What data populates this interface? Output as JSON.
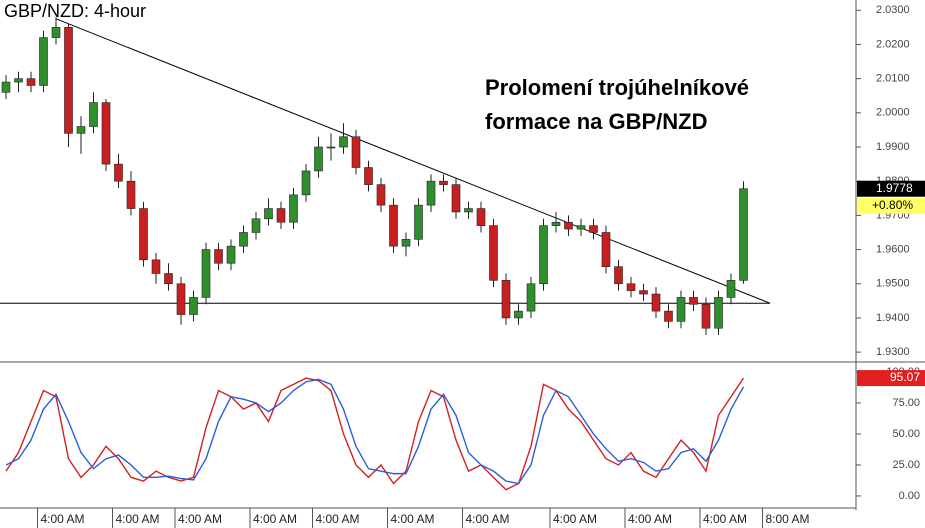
{
  "chart_data": {
    "type": "candlestick",
    "title": "GBP/NZD: 4-hour",
    "annotation": [
      "Prolomení trojúhelníkové",
      "formace na GBP/NZD"
    ],
    "categories": [
      null,
      null,
      null,
      "4:00 AM",
      null,
      null,
      null,
      null,
      null,
      "4:00 AM",
      null,
      null,
      null,
      null,
      "4:00 AM",
      null,
      null,
      null,
      null,
      null,
      "4:00 AM",
      null,
      null,
      null,
      null,
      "4:00 AM",
      null,
      null,
      null,
      null,
      null,
      "4:00 AM",
      null,
      null,
      null,
      null,
      null,
      "4:00 AM",
      null,
      null,
      null,
      null,
      null,
      null,
      "4:00 AM",
      null,
      null,
      null,
      null,
      null,
      "4:00 AM",
      null,
      null,
      null,
      null,
      null,
      "4:00 AM",
      null,
      null,
      null,
      null,
      "8:00 AM"
    ],
    "open": [
      2.006,
      2.009,
      2.01,
      2.008,
      2.022,
      2.025,
      1.994,
      1.996,
      2.003,
      1.985,
      1.98,
      1.972,
      1.957,
      1.953,
      1.95,
      1.941,
      1.946,
      1.96,
      1.956,
      1.961,
      1.965,
      1.969,
      1.972,
      1.968,
      1.976,
      1.983,
      1.99,
      1.99,
      1.993,
      1.984,
      1.979,
      1.973,
      1.961,
      1.963,
      1.973,
      1.98,
      1.979,
      1.971,
      1.972,
      1.967,
      1.951,
      1.94,
      1.942,
      1.95,
      1.967,
      1.968,
      1.966,
      1.967,
      1.965,
      1.955,
      1.95,
      1.948,
      1.947,
      1.942,
      1.939,
      1.946,
      1.944,
      1.937,
      1.946,
      1.951,
      null,
      null
    ],
    "high": [
      2.011,
      2.012,
      2.012,
      2.024,
      2.028,
      2.026,
      1.999,
      2.006,
      2.004,
      1.988,
      1.983,
      1.974,
      1.959,
      1.956,
      1.952,
      1.948,
      1.962,
      1.962,
      1.963,
      1.967,
      1.971,
      1.975,
      1.974,
      1.978,
      1.985,
      1.993,
      1.994,
      1.997,
      1.995,
      1.986,
      1.981,
      1.975,
      1.965,
      1.975,
      1.982,
      1.982,
      1.981,
      1.974,
      1.974,
      1.969,
      1.953,
      1.944,
      1.952,
      1.969,
      1.971,
      1.97,
      1.969,
      1.969,
      1.967,
      1.957,
      1.952,
      1.95,
      1.949,
      1.944,
      1.948,
      1.948,
      1.946,
      1.948,
      1.953,
      1.98,
      null,
      null
    ],
    "low": [
      2.004,
      2.006,
      2.006,
      2.006,
      2.02,
      1.99,
      1.988,
      1.994,
      1.983,
      1.978,
      1.97,
      1.955,
      1.95,
      1.948,
      1.938,
      1.939,
      1.944,
      1.954,
      1.954,
      1.959,
      1.963,
      1.967,
      1.966,
      1.966,
      1.974,
      1.981,
      1.986,
      1.988,
      1.982,
      1.977,
      1.971,
      1.959,
      1.958,
      1.961,
      1.971,
      1.977,
      1.969,
      1.969,
      1.965,
      1.949,
      1.938,
      1.938,
      1.94,
      1.948,
      1.965,
      1.964,
      1.964,
      1.963,
      1.953,
      1.948,
      1.946,
      1.945,
      1.94,
      1.937,
      1.937,
      1.942,
      1.935,
      1.935,
      1.944,
      1.95,
      null,
      null
    ],
    "close": [
      2.009,
      2.01,
      2.008,
      2.022,
      2.025,
      1.994,
      1.996,
      2.003,
      1.985,
      1.98,
      1.972,
      1.957,
      1.953,
      1.95,
      1.941,
      1.946,
      1.96,
      1.956,
      1.961,
      1.965,
      1.969,
      1.972,
      1.968,
      1.976,
      1.983,
      1.99,
      1.99,
      1.993,
      1.984,
      1.979,
      1.973,
      1.961,
      1.963,
      1.973,
      1.98,
      1.979,
      1.971,
      1.972,
      1.967,
      1.951,
      1.94,
      1.942,
      1.95,
      1.967,
      1.968,
      1.966,
      1.967,
      1.965,
      1.955,
      1.95,
      1.948,
      1.947,
      1.942,
      1.939,
      1.946,
      1.944,
      1.937,
      1.946,
      1.951,
      1.9778,
      null,
      null
    ],
    "up_color": "#2f8f2f",
    "down_color": "#c82020",
    "ylim": [
      1.9277,
      2.033
    ],
    "yticks": [
      {
        "value": 1.93,
        "label": "1.9300"
      },
      {
        "value": 1.94,
        "label": "1.9400"
      },
      {
        "value": 1.95,
        "label": "1.9500"
      },
      {
        "value": 1.96,
        "label": "1.9600"
      },
      {
        "value": 1.97,
        "label": "1.9700"
      },
      {
        "value": 1.98,
        "label": "1.9800"
      },
      {
        "value": 1.99,
        "label": "1.9900"
      },
      {
        "value": 2.0,
        "label": "2.0000"
      },
      {
        "value": 2.01,
        "label": "2.0100"
      },
      {
        "value": 2.02,
        "label": "2.0200"
      },
      {
        "value": 2.03,
        "label": "2.0300"
      }
    ],
    "change": {
      "value": 0.8,
      "label": "+0.80%"
    },
    "support": 1.9443,
    "trendline": [
      2.0275,
      1.9443
    ],
    "stochastic": {
      "type": "line",
      "ylim": [
        -7.3,
        104.8
      ],
      "yticks": [
        {
          "value": 0,
          "label": "0.00"
        },
        {
          "value": 25,
          "label": "25.00"
        },
        {
          "value": 50,
          "label": "50.00"
        },
        {
          "value": 75,
          "label": "75.00"
        },
        {
          "value": 100,
          "label": "100.00"
        }
      ],
      "series": [
        {
          "color": "#d42020",
          "values": [
            20,
            35,
            60,
            85,
            80,
            30,
            15,
            25,
            40,
            30,
            15,
            12,
            20,
            15,
            12,
            15,
            55,
            85,
            80,
            70,
            75,
            60,
            85,
            90,
            95,
            93,
            85,
            50,
            25,
            15,
            25,
            10,
            20,
            60,
            85,
            80,
            45,
            20,
            25,
            15,
            5,
            10,
            40,
            90,
            85,
            70,
            60,
            45,
            30,
            25,
            35,
            20,
            15,
            30,
            45,
            35,
            20,
            65,
            80,
            95.07,
            null,
            null
          ]
        },
        {
          "color": "#2a5fd8",
          "values": [
            25,
            30,
            45,
            70,
            82,
            60,
            35,
            22,
            30,
            33,
            25,
            15,
            15,
            16,
            14,
            13,
            30,
            60,
            80,
            78,
            75,
            68,
            75,
            85,
            92,
            94,
            90,
            70,
            40,
            22,
            20,
            18,
            18,
            40,
            70,
            82,
            65,
            35,
            25,
            20,
            12,
            10,
            25,
            65,
            85,
            80,
            65,
            50,
            38,
            28,
            30,
            27,
            20,
            22,
            35,
            38,
            28,
            45,
            70,
            88,
            null,
            null
          ]
        }
      ]
    }
  }
}
